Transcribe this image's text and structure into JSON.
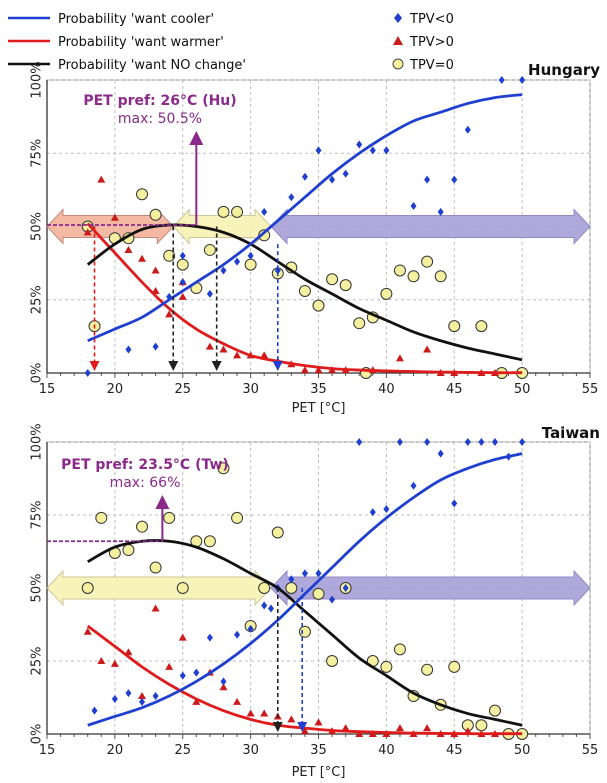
{
  "legend": [
    {
      "label": "Probability 'want cooler'",
      "kind": "line",
      "color": "#1f3fd1"
    },
    {
      "label": "Probability 'want warmer'",
      "kind": "line",
      "color": "#e01b1b"
    },
    {
      "label": "Probability 'want NO change'",
      "kind": "line",
      "color": "#111111"
    },
    {
      "label": "TPV<0",
      "kind": "diamond",
      "color": "#1f3fd1"
    },
    {
      "label": "TPV>0",
      "kind": "triangle",
      "color": "#cc1a1a"
    },
    {
      "label": "TPV=0",
      "kind": "circle",
      "color": "#f5f0a0"
    }
  ],
  "chart_data": [
    {
      "type": "scatter",
      "title": "Hungary",
      "xlabel": "PET [°C]",
      "ylabel": "",
      "xlim": [
        15,
        55
      ],
      "ylim": [
        0,
        100
      ],
      "xticks": [
        "15",
        "20",
        "25",
        "30",
        "35",
        "40",
        "45",
        "50",
        "55"
      ],
      "yticks": [
        "0%",
        "25%",
        "50%",
        "75%",
        "100%"
      ],
      "annotation": {
        "title": "PET pref: 26°C (Hu)",
        "sub": "max: 50.5%",
        "pref_x": 26,
        "max_y": 50.5
      },
      "curves": {
        "cooler": {
          "x": [
            18,
            20,
            22,
            24,
            26,
            28,
            30,
            32,
            34,
            36,
            38,
            40,
            42,
            44,
            46,
            48,
            50
          ],
          "y": [
            11,
            15,
            19,
            25,
            31,
            37,
            44,
            52,
            60,
            68,
            75,
            81,
            86,
            89,
            92,
            94,
            95
          ]
        },
        "warmer": {
          "x": [
            18,
            20,
            22,
            24,
            26,
            28,
            30,
            32,
            34,
            36,
            38,
            40,
            42,
            44,
            46,
            48,
            50
          ],
          "y": [
            51,
            41,
            31,
            22,
            15,
            10,
            6,
            4,
            2.5,
            1.5,
            1,
            0.7,
            0.5,
            0.3,
            0.2,
            0.1,
            0.1
          ]
        },
        "nochange": {
          "x": [
            18,
            20,
            22,
            24,
            26,
            28,
            30,
            32,
            34,
            36,
            38,
            40,
            42,
            44,
            46,
            48,
            50
          ],
          "y": [
            37,
            44,
            49,
            50.5,
            50,
            48,
            44,
            38,
            32,
            27,
            22,
            18,
            14,
            11,
            8.5,
            6.5,
            4.5
          ]
        }
      },
      "points_cooler": {
        "x": [
          18,
          21,
          23,
          24,
          25,
          25,
          27,
          28,
          29,
          30,
          31,
          32,
          33,
          34,
          35,
          36,
          37,
          38,
          39,
          40,
          42,
          43,
          44,
          45,
          46,
          48.5,
          50
        ],
        "y": [
          0,
          8,
          9,
          26,
          31,
          40,
          27,
          35,
          38,
          40,
          55,
          35,
          60,
          67,
          76,
          66,
          68,
          78,
          76,
          76,
          57,
          66,
          55,
          66,
          83,
          100,
          100
        ]
      },
      "points_warmer": {
        "x": [
          18,
          19,
          20,
          21,
          22,
          23,
          23,
          24,
          25,
          25,
          27,
          28,
          29,
          30,
          31,
          32,
          33,
          34,
          35,
          36,
          37,
          39,
          41,
          43,
          44,
          45,
          47,
          48
        ],
        "y": [
          48,
          66,
          53,
          42,
          39,
          35,
          28,
          20,
          31,
          26,
          9,
          8,
          6,
          6,
          6,
          4,
          3,
          1,
          1,
          1,
          1,
          1,
          5,
          8,
          0,
          0,
          0,
          0
        ]
      },
      "points_nochange": {
        "x": [
          18,
          18.5,
          20,
          21,
          22,
          23,
          24,
          25,
          26,
          27,
          28,
          29,
          30,
          31,
          32,
          33,
          34,
          35,
          36,
          37,
          38,
          38.5,
          39,
          40,
          41,
          42,
          43,
          44,
          45,
          47,
          48.5,
          50
        ],
        "y": [
          50,
          16,
          46,
          46,
          61,
          54,
          40,
          37,
          29,
          42,
          55,
          55,
          37,
          47,
          34,
          36,
          28,
          23,
          32,
          30,
          17,
          0,
          19,
          27,
          35,
          33,
          38,
          33,
          16,
          16,
          0,
          0
        ]
      },
      "arrows": [
        {
          "x_from": 15,
          "x_to": 24.3,
          "color": "#f2b49c",
          "edge": "#c08070"
        },
        {
          "x_from": 24.3,
          "x_to": 31.5,
          "color": "#f7f3b5",
          "edge": "#c8c290"
        },
        {
          "x_from": 31.5,
          "x_to": 55,
          "color": "#a9a2d8",
          "edge": "#8a80c0"
        }
      ],
      "drops": [
        {
          "x": 18.5,
          "y": 50,
          "color": "#e01b1b"
        },
        {
          "x": 24.3,
          "y": 50,
          "color": "#222222"
        },
        {
          "x": 27.5,
          "y": 50,
          "color": "#222222"
        },
        {
          "x": 32,
          "y": 44,
          "color": "#1f3fd1"
        }
      ]
    },
    {
      "type": "scatter",
      "title": "Taiwan",
      "xlabel": "PET [°C]",
      "ylabel": "",
      "xlim": [
        15,
        55
      ],
      "ylim": [
        0,
        100
      ],
      "xticks": [
        "15",
        "20",
        "25",
        "30",
        "35",
        "40",
        "45",
        "50",
        "55"
      ],
      "yticks": [
        "0%",
        "25%",
        "50%",
        "75%",
        "100%"
      ],
      "annotation": {
        "title": "PET pref: 23.5°C (Tw)",
        "sub": "max: 66%",
        "pref_x": 23.5,
        "max_y": 66
      },
      "curves": {
        "cooler": {
          "x": [
            18,
            20,
            22,
            24,
            26,
            28,
            30,
            32,
            34,
            36,
            38,
            40,
            42,
            44,
            46,
            48,
            50
          ],
          "y": [
            3,
            6,
            9,
            13,
            18,
            24,
            31,
            39,
            48,
            57,
            66,
            74,
            81,
            87,
            91,
            94,
            96
          ]
        },
        "warmer": {
          "x": [
            18,
            20,
            22,
            24,
            26,
            28,
            30,
            32,
            34,
            36,
            38,
            40,
            42,
            44,
            46,
            48,
            50
          ],
          "y": [
            37,
            30,
            23,
            17,
            12,
            8,
            5,
            3,
            2,
            1.2,
            0.8,
            0.5,
            0.3,
            0.2,
            0.1,
            0.1,
            0.1
          ]
        },
        "nochange": {
          "x": [
            18,
            20,
            22,
            24,
            26,
            28,
            30,
            32,
            34,
            36,
            38,
            40,
            42,
            44,
            46,
            48,
            50
          ],
          "y": [
            59,
            64,
            66,
            66,
            64,
            60,
            55,
            50,
            42,
            34,
            26,
            20,
            14,
            10,
            7,
            5,
            3
          ]
        }
      },
      "points_cooler": {
        "x": [
          18.5,
          20,
          21,
          22,
          23,
          25,
          26,
          27,
          28,
          29,
          30,
          31,
          31.5,
          32,
          33,
          34,
          35,
          36,
          37,
          38,
          39,
          40,
          41,
          42,
          43,
          44,
          45,
          46,
          47,
          48,
          49,
          50
        ],
        "y": [
          8,
          12,
          14,
          11,
          13,
          20,
          21,
          33,
          18,
          34,
          36,
          44,
          43,
          50,
          53,
          55,
          55,
          46,
          50,
          100,
          76,
          77,
          100,
          85,
          100,
          96,
          79,
          100,
          100,
          100,
          95,
          100
        ],
        "_": ""
      },
      "points_warmer": {
        "x": [
          18,
          19,
          20,
          21,
          22,
          23,
          24,
          25,
          26,
          27,
          28,
          29,
          30,
          31,
          32,
          33,
          34,
          35,
          36,
          37,
          38,
          39,
          40,
          41,
          42,
          43,
          44,
          45,
          46,
          47,
          48
        ],
        "y": [
          35,
          25,
          24,
          28,
          13,
          43,
          23,
          33,
          11,
          21,
          16,
          11,
          7,
          7,
          6,
          5,
          1,
          4,
          1,
          2,
          0,
          0,
          0,
          2,
          0,
          2,
          0,
          0,
          1,
          0,
          0
        ]
      },
      "points_nochange": {
        "x": [
          18,
          19,
          20,
          21,
          22,
          23,
          24,
          25,
          26,
          27,
          28,
          29,
          30,
          31,
          32,
          33,
          34,
          35,
          36,
          37,
          39,
          40,
          41,
          42,
          43,
          44,
          45,
          46,
          47,
          48,
          49,
          50
        ],
        "y": [
          50,
          74,
          62,
          63,
          71,
          57,
          74,
          50,
          66,
          66,
          91,
          74,
          37,
          50,
          69,
          50,
          35,
          48,
          25,
          50,
          25,
          23,
          29,
          13,
          22,
          10,
          23,
          3,
          3,
          8,
          0,
          0
        ]
      },
      "arrows": [
        {
          "x_from": 15,
          "x_to": 31.5,
          "color": "#f7f3b5",
          "edge": "#c8c290"
        },
        {
          "x_from": 31.5,
          "x_to": 55,
          "color": "#a9a2d8",
          "edge": "#8a80c0"
        }
      ],
      "drops": [
        {
          "x": 32,
          "y": 50,
          "color": "#222222"
        },
        {
          "x": 33.8,
          "y": 50,
          "color": "#1f3fd1"
        }
      ]
    }
  ]
}
